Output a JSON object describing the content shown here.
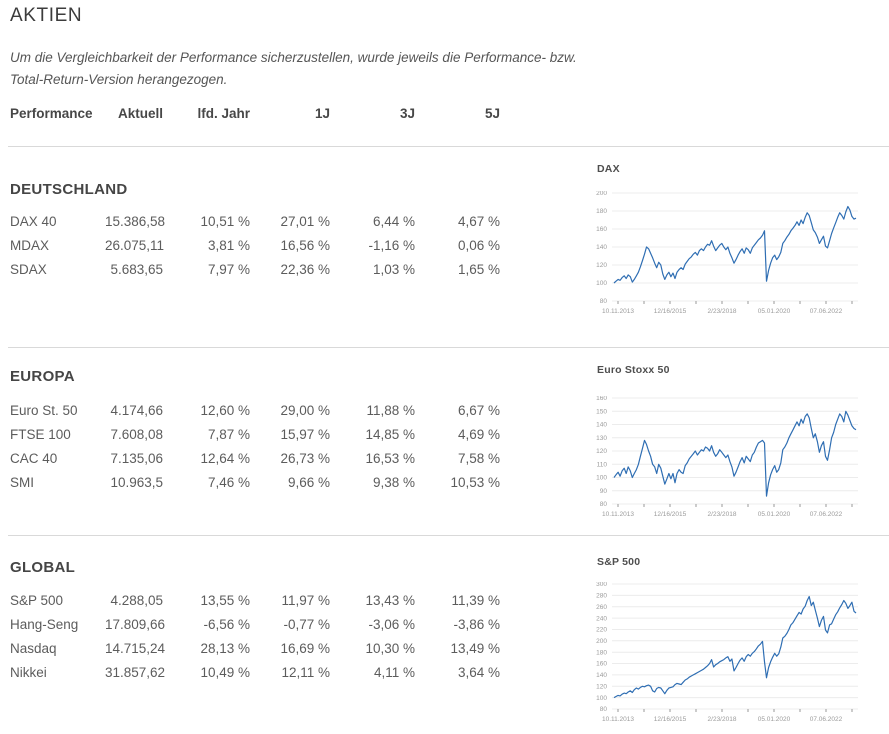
{
  "page": {
    "title": "AKTIEN",
    "subtitle": "Um die Vergleichbarkeit der Performance sicherzustellen, wurde jeweils die Performance- bzw. Total-Return-Version herangezogen."
  },
  "table": {
    "columns": [
      "Performance",
      "Aktuell",
      "lfd. Jahr",
      "1J",
      "3J",
      "5J"
    ],
    "sections": [
      {
        "name": "DEUTSCHLAND",
        "rows": [
          {
            "label": "DAX 40",
            "values": [
              "15.386,58",
              "10,51 %",
              "27,01 %",
              "6,44 %",
              "4,67 %"
            ]
          },
          {
            "label": "MDAX",
            "values": [
              "26.075,11",
              "3,81 %",
              "16,56 %",
              "-1,16 %",
              "0,06 %"
            ]
          },
          {
            "label": "SDAX",
            "values": [
              "5.683,65",
              "7,97 %",
              "22,36 %",
              "1,03 %",
              "1,65 %"
            ]
          }
        ]
      },
      {
        "name": "EUROPA",
        "rows": [
          {
            "label": "Euro St. 50",
            "values": [
              "4.174,66",
              "12,60 %",
              "29,00 %",
              "11,88 %",
              "6,67 %"
            ]
          },
          {
            "label": "FTSE 100",
            "values": [
              "7.608,08",
              "7,87 %",
              "15,97 %",
              "14,85 %",
              "4,69 %"
            ]
          },
          {
            "label": "CAC 40",
            "values": [
              "7.135,06",
              "12,64 %",
              "26,73 %",
              "16,53 %",
              "7,58 %"
            ]
          },
          {
            "label": "SMI",
            "values": [
              "10.963,5",
              "7,46 %",
              "9,66 %",
              "9,38 %",
              "10,53 %"
            ]
          }
        ]
      },
      {
        "name": "GLOBAL",
        "rows": [
          {
            "label": "S&P 500",
            "values": [
              "4.288,05",
              "13,55 %",
              "11,97 %",
              "13,43 %",
              "11,39 %"
            ]
          },
          {
            "label": "Hang-Seng",
            "values": [
              "17.809,66",
              "-6,56 %",
              "-0,77 %",
              "-3,06 %",
              "-3,86 %"
            ]
          },
          {
            "label": "Nasdaq",
            "values": [
              "14.715,24",
              "28,13 %",
              "16,69 %",
              "10,30 %",
              "13,49 %"
            ]
          },
          {
            "label": "Nikkei",
            "values": [
              "31.857,62",
              "10,49 %",
              "12,11 %",
              "4,11 %",
              "3,64 %"
            ]
          }
        ]
      }
    ]
  },
  "chart_style": {
    "line_color": "#2f6eb3",
    "grid_color": "#ececec",
    "tick_color": "#9a9a9a",
    "tick_label_color": "#9b9b9b"
  },
  "chart_data": [
    {
      "type": "line",
      "title": "DAX",
      "ylabel": "",
      "xlabel": "",
      "ylim": [
        80,
        200
      ],
      "ystep": 20,
      "grid": true,
      "legend": false,
      "x_tick_labels": [
        "10.11.2013",
        "12/16/2015",
        "2/23/2018",
        "05.01.2020",
        "07.06.2022"
      ],
      "values": [
        100,
        102,
        104,
        103,
        106,
        108,
        105,
        109,
        107,
        101,
        104,
        108,
        112,
        118,
        125,
        132,
        140,
        138,
        133,
        128,
        122,
        117,
        123,
        120,
        110,
        104,
        109,
        112,
        107,
        111,
        105,
        112,
        115,
        117,
        115,
        121,
        124,
        127,
        129,
        132,
        134,
        131,
        136,
        138,
        136,
        140,
        143,
        142,
        147,
        141,
        136,
        139,
        142,
        144,
        140,
        137,
        140,
        133,
        128,
        122,
        126,
        131,
        135,
        138,
        133,
        139,
        137,
        133,
        139,
        142,
        145,
        148,
        150,
        153,
        158,
        102,
        114,
        122,
        128,
        131,
        126,
        129,
        134,
        144,
        147,
        151,
        154,
        158,
        161,
        164,
        168,
        164,
        170,
        166,
        173,
        178,
        175,
        167,
        159,
        156,
        151,
        144,
        148,
        152,
        141,
        139,
        147,
        155,
        161,
        167,
        173,
        178,
        175,
        171,
        179,
        185,
        181,
        174,
        171,
        172
      ]
    },
    {
      "type": "line",
      "title": "Euro Stoxx 50",
      "ylabel": "",
      "xlabel": "",
      "ylim": [
        80,
        160
      ],
      "ystep": 10,
      "grid": true,
      "legend": false,
      "x_tick_labels": [
        "10.11.2013",
        "12/16/2015",
        "2/23/2018",
        "05.01.2020",
        "07.06.2022"
      ],
      "values": [
        100,
        102,
        104,
        101,
        105,
        107,
        103,
        108,
        105,
        100,
        103,
        106,
        110,
        116,
        122,
        128,
        125,
        120,
        116,
        110,
        108,
        103,
        110,
        107,
        101,
        95,
        99,
        103,
        99,
        103,
        96,
        103,
        106,
        104,
        103,
        109,
        111,
        114,
        116,
        118,
        120,
        117,
        119,
        121,
        120,
        123,
        122,
        120,
        124,
        119,
        116,
        118,
        121,
        119,
        117,
        115,
        117,
        112,
        108,
        101,
        104,
        108,
        112,
        115,
        111,
        116,
        114,
        112,
        117,
        119,
        123,
        126,
        127,
        128,
        126,
        86,
        96,
        102,
        106,
        109,
        104,
        106,
        111,
        121,
        123,
        126,
        130,
        133,
        136,
        139,
        142,
        139,
        144,
        141,
        146,
        148,
        145,
        137,
        130,
        133,
        127,
        119,
        124,
        127,
        116,
        113,
        121,
        130,
        134,
        140,
        144,
        148,
        146,
        142,
        150,
        147,
        143,
        139,
        137,
        136
      ]
    },
    {
      "type": "line",
      "title": "S&P 500",
      "ylabel": "",
      "xlabel": "",
      "ylim": [
        80,
        300
      ],
      "ystep": 20,
      "grid": true,
      "legend": false,
      "x_tick_labels": [
        "10.11.2013",
        "12/16/2015",
        "2/23/2018",
        "05.01.2020",
        "07.06.2022"
      ],
      "values": [
        100,
        102,
        104,
        103,
        106,
        108,
        107,
        110,
        112,
        109,
        114,
        117,
        115,
        118,
        120,
        119,
        121,
        122,
        120,
        112,
        110,
        116,
        118,
        117,
        112,
        107,
        113,
        117,
        118,
        119,
        123,
        125,
        124,
        123,
        127,
        131,
        133,
        136,
        138,
        140,
        142,
        144,
        146,
        148,
        150,
        153,
        156,
        160,
        167,
        154,
        158,
        160,
        163,
        165,
        167,
        170,
        172,
        164,
        168,
        147,
        153,
        160,
        166,
        170,
        164,
        172,
        176,
        173,
        178,
        181,
        186,
        191,
        194,
        199,
        163,
        135,
        153,
        163,
        171,
        178,
        173,
        177,
        189,
        205,
        208,
        213,
        220,
        228,
        232,
        238,
        244,
        250,
        247,
        256,
        261,
        271,
        278,
        262,
        268,
        254,
        240,
        225,
        236,
        243,
        219,
        214,
        228,
        230,
        238,
        246,
        251,
        258,
        264,
        271,
        266,
        257,
        262,
        268,
        252,
        249
      ]
    }
  ]
}
